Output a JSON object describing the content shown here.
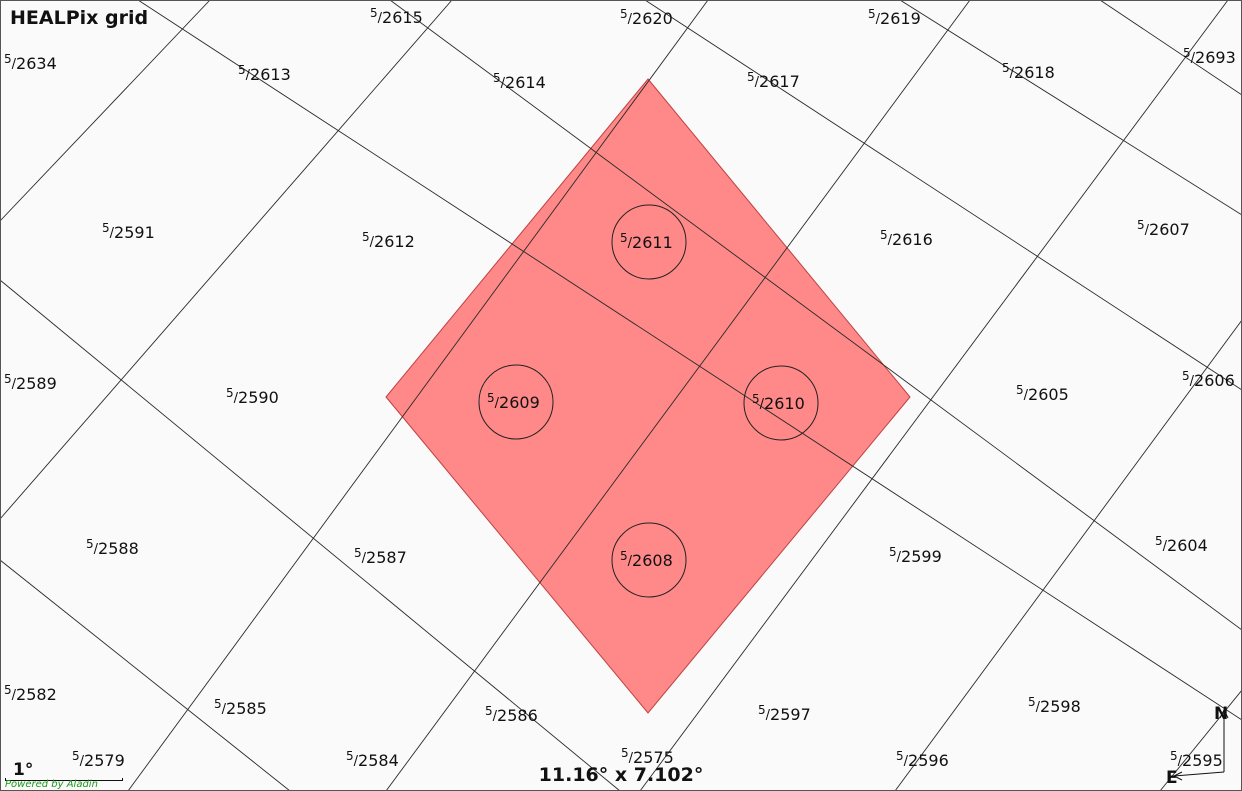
{
  "view": {
    "title": "HEALPix grid",
    "scale_label": "1°",
    "powered_by": "Powered by Aladin",
    "field_of_view": "11.16° x 7.102°",
    "compass": {
      "north": "N",
      "east": "E"
    }
  },
  "colors": {
    "background": "#fafafa",
    "grid_line": "#2a2a2a",
    "selection_fill": "#ff8888",
    "selection_stroke": "#c04040",
    "powered_by": "#1a9a1a"
  },
  "cells": [
    {
      "order": "5",
      "index": "2634"
    },
    {
      "order": "5",
      "index": "2615"
    },
    {
      "order": "5",
      "index": "2620"
    },
    {
      "order": "5",
      "index": "2619"
    },
    {
      "order": "5",
      "index": "2693"
    },
    {
      "order": "5",
      "index": "2613"
    },
    {
      "order": "5",
      "index": "2614"
    },
    {
      "order": "5",
      "index": "2617"
    },
    {
      "order": "5",
      "index": "2618"
    },
    {
      "order": "5",
      "index": "2591"
    },
    {
      "order": "5",
      "index": "2612"
    },
    {
      "order": "5",
      "index": "2611",
      "selected": true
    },
    {
      "order": "5",
      "index": "2616"
    },
    {
      "order": "5",
      "index": "2607"
    },
    {
      "order": "5",
      "index": "2589"
    },
    {
      "order": "5",
      "index": "2590"
    },
    {
      "order": "5",
      "index": "2609",
      "selected": true
    },
    {
      "order": "5",
      "index": "2610",
      "selected": true
    },
    {
      "order": "5",
      "index": "2605"
    },
    {
      "order": "5",
      "index": "2606"
    },
    {
      "order": "5",
      "index": "2588"
    },
    {
      "order": "5",
      "index": "2587"
    },
    {
      "order": "5",
      "index": "2608",
      "selected": true
    },
    {
      "order": "5",
      "index": "2599"
    },
    {
      "order": "5",
      "index": "2604"
    },
    {
      "order": "5",
      "index": "2582"
    },
    {
      "order": "5",
      "index": "2585"
    },
    {
      "order": "5",
      "index": "2586"
    },
    {
      "order": "5",
      "index": "2597"
    },
    {
      "order": "5",
      "index": "2598"
    },
    {
      "order": "5",
      "index": "2579"
    },
    {
      "order": "5",
      "index": "2584"
    },
    {
      "order": "5",
      "index": "2575"
    },
    {
      "order": "5",
      "index": "2596"
    },
    {
      "order": "5",
      "index": "2595"
    }
  ]
}
